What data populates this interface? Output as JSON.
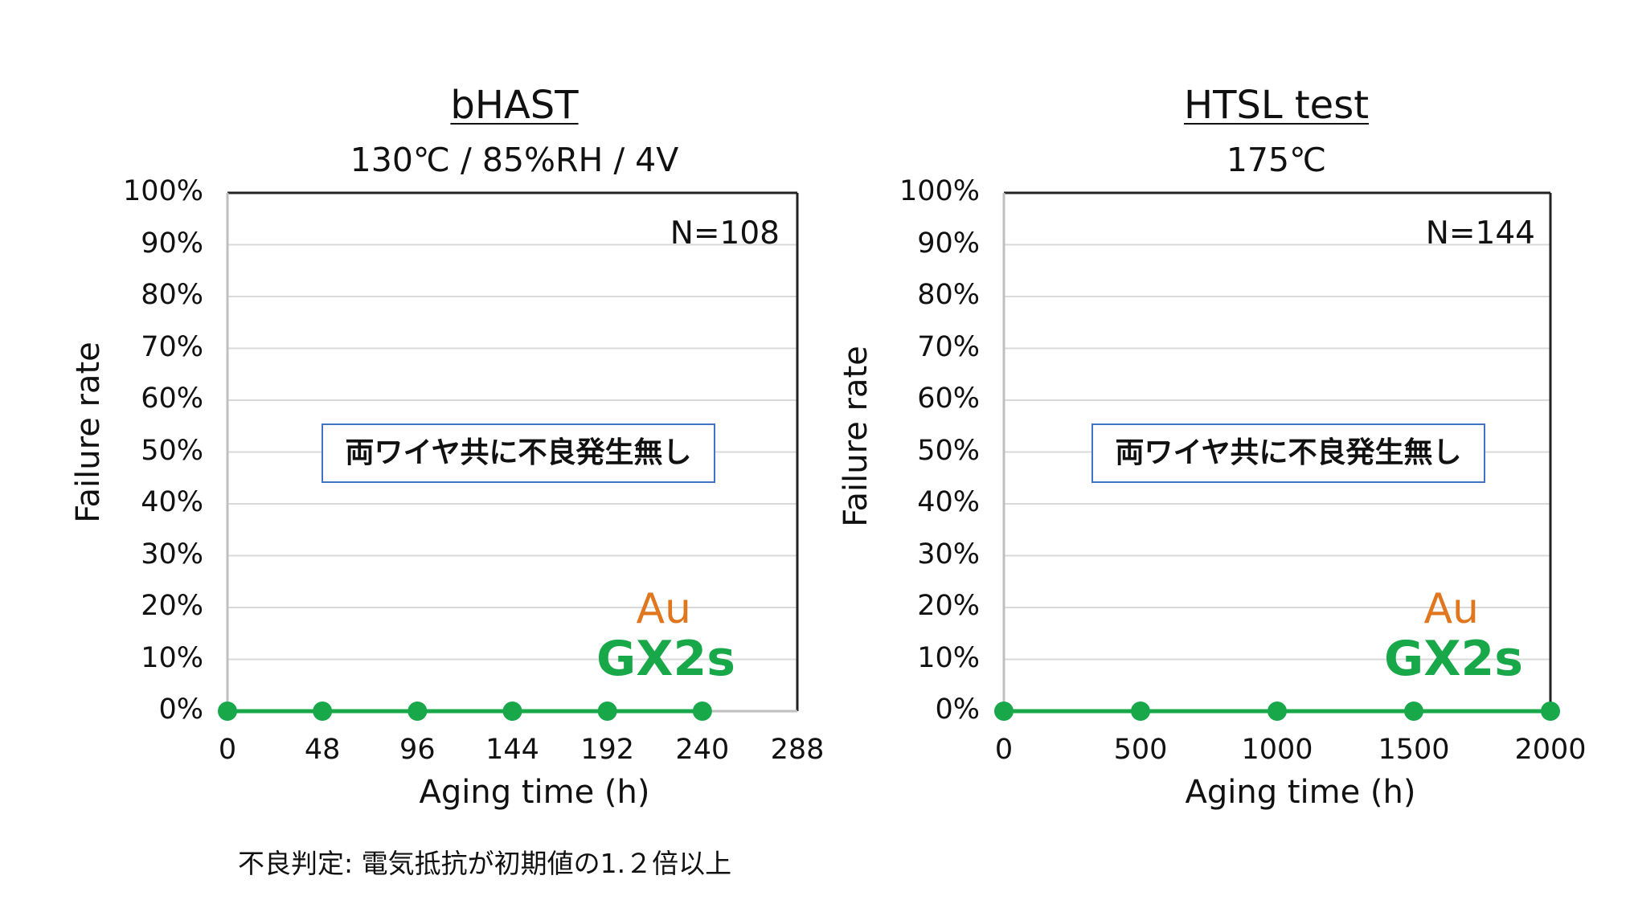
{
  "footer_note": "不良判定: 電気抵抗が初期値の1.２倍以上",
  "colors": {
    "series_au": "#e0761e",
    "series_gx2s": "#18a84a",
    "grid": "#d9d9d9",
    "axis": "#222222",
    "note_border": "#4472c4"
  },
  "chart_data": [
    {
      "type": "line",
      "title": "bHAST",
      "subtitle": "130℃ / 85%RH / 4V",
      "xlabel": "Aging time (h)",
      "ylabel": "Failure rate",
      "xlim": [
        0,
        288
      ],
      "ylim": [
        0,
        100
      ],
      "x_ticks": [
        "0",
        "48",
        "96",
        "144",
        "192",
        "240",
        "288"
      ],
      "y_ticks": [
        "0%",
        "10%",
        "20%",
        "30%",
        "40%",
        "50%",
        "60%",
        "70%",
        "80%",
        "90%",
        "100%"
      ],
      "grid": true,
      "sample_size_label": "N=108",
      "annotation": "両ワイヤ共に不良発生無し",
      "legend_labels": [
        "Au",
        "GX2s"
      ],
      "series": [
        {
          "name": "GX2s",
          "x": [
            0,
            48,
            96,
            144,
            192,
            240
          ],
          "y": [
            0,
            0,
            0,
            0,
            0,
            0
          ]
        }
      ]
    },
    {
      "type": "line",
      "title": "HTSL test",
      "subtitle": "175℃",
      "xlabel": "Aging time (h)",
      "ylabel": "Failure rate",
      "xlim": [
        0,
        2000
      ],
      "ylim": [
        0,
        100
      ],
      "x_ticks": [
        "0",
        "500",
        "1000",
        "1500",
        "2000"
      ],
      "y_ticks": [
        "0%",
        "10%",
        "20%",
        "30%",
        "40%",
        "50%",
        "60%",
        "70%",
        "80%",
        "90%",
        "100%"
      ],
      "grid": true,
      "sample_size_label": "N=144",
      "annotation": "両ワイヤ共に不良発生無し",
      "legend_labels": [
        "Au",
        "GX2s"
      ],
      "series": [
        {
          "name": "GX2s",
          "x": [
            0,
            500,
            1000,
            1500,
            2000
          ],
          "y": [
            0,
            0,
            0,
            0,
            0
          ]
        }
      ]
    }
  ]
}
